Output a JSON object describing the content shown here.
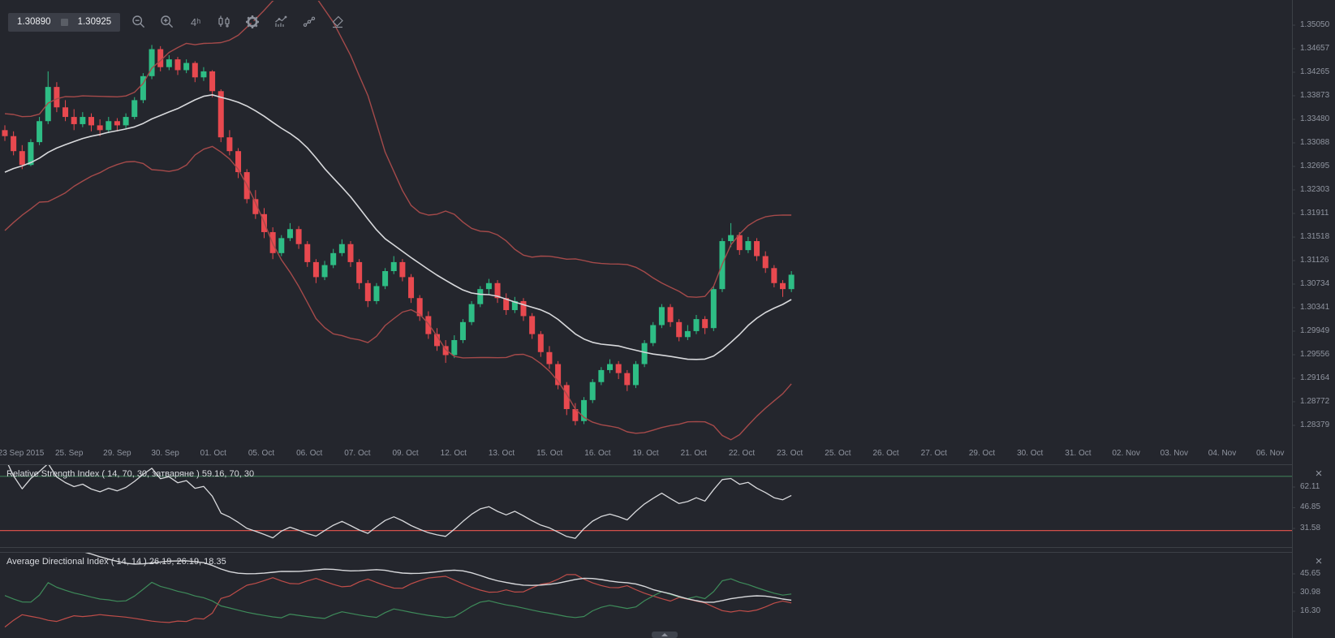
{
  "toolbar": {
    "bid": "1.30890",
    "ask": "1.30925",
    "timeframe_label": "4ʰ",
    "icon_names": [
      "zoom-out-icon",
      "zoom-in-icon",
      "timeframe-4h-icon",
      "candlestick-style-icon",
      "settings-gear-icon",
      "indicators-icon",
      "line-points-icon",
      "eraser-icon"
    ]
  },
  "panels": {
    "rsi": {
      "title": "Relative Strength Index ( 14, 70, 30, затваряне ) 59.16, 70, 30",
      "close_label": "×"
    },
    "adx": {
      "title": "Average Directional Index ( 14, 14 ) 26.19, 26.19, 18.35",
      "close_label": "×"
    }
  },
  "colors": {
    "background": "#24262d",
    "bullish": "#2ebd85",
    "bearish": "#e8494f",
    "bollinger_band": "#a54a4a",
    "moving_average": "#d8d9dc",
    "rsi_line": "#d8d9dc",
    "rsi_upper_level": "#3e7e57",
    "rsi_lower_level": "#d3504a",
    "adx_line": "#d8d9dc",
    "plus_di": "#3e8b5a",
    "minus_di": "#bf4d49",
    "axis_text": "#9095a0",
    "panel_border": "#3c4046"
  },
  "chart_data": {
    "type": "candlestick",
    "main": {
      "title": "EURUSD-style 4h candlestick pane with Bollinger Bands (20, 2)",
      "y_ticks": [
        "1.35050",
        "1.34657",
        "1.34265",
        "1.33873",
        "1.33480",
        "1.33088",
        "1.32695",
        "1.32303",
        "1.31911",
        "1.31518",
        "1.31126",
        "1.30734",
        "1.30341",
        "1.29949",
        "1.29556",
        "1.29164",
        "1.28772",
        "1.28379"
      ],
      "x_labels": [
        "23 Sep 2015",
        "25. Sep",
        "29. Sep",
        "30. Sep",
        "01. Oct",
        "05. Oct",
        "06. Oct",
        "07. Oct",
        "09. Oct",
        "12. Oct",
        "13. Oct",
        "15. Oct",
        "16. Oct",
        "19. Oct",
        "21. Oct",
        "22. Oct",
        "23. Oct",
        "25. Oct",
        "26. Oct",
        "27. Oct",
        "29. Oct",
        "30. Oct",
        "31. Oct",
        "02. Nov",
        "03. Nov",
        "04. Nov",
        "06. Nov"
      ],
      "bollinger": {
        "period": 20,
        "stddev": 2
      },
      "seed_closes": [
        1.309,
        1.31,
        1.311,
        1.312,
        1.3135,
        1.313,
        1.3145,
        1.315,
        1.316,
        1.3155,
        1.316,
        1.3175,
        1.3185,
        1.32,
        1.3195,
        1.321,
        1.3225,
        1.324,
        1.3235,
        1.325,
        1.326,
        1.3275,
        1.327,
        1.3285,
        1.3295,
        1.331,
        1.3305,
        1.3315,
        1.332,
        1.333
      ],
      "candles": [
        [
          1.333,
          1.3338,
          1.3312,
          1.332
        ],
        [
          1.332,
          1.3328,
          1.3288,
          1.3295
        ],
        [
          1.3295,
          1.3305,
          1.3265,
          1.3272
        ],
        [
          1.3272,
          1.3315,
          1.327,
          1.331
        ],
        [
          1.331,
          1.3352,
          1.3305,
          1.3345
        ],
        [
          1.3345,
          1.3428,
          1.334,
          1.3402
        ],
        [
          1.3402,
          1.341,
          1.336,
          1.3368
        ],
        [
          1.3368,
          1.338,
          1.3345,
          1.3352
        ],
        [
          1.3352,
          1.3365,
          1.333,
          1.334
        ],
        [
          1.334,
          1.336,
          1.3335,
          1.3352
        ],
        [
          1.3352,
          1.3358,
          1.3328,
          1.3338
        ],
        [
          1.3338,
          1.3348,
          1.332,
          1.333
        ],
        [
          1.333,
          1.3352,
          1.3325,
          1.3345
        ],
        [
          1.3345,
          1.335,
          1.3328,
          1.3338
        ],
        [
          1.3338,
          1.3358,
          1.3332,
          1.3352
        ],
        [
          1.3352,
          1.3385,
          1.3348,
          1.338
        ],
        [
          1.338,
          1.3425,
          1.3375,
          1.342
        ],
        [
          1.342,
          1.3472,
          1.3415,
          1.3465
        ],
        [
          1.3465,
          1.347,
          1.3428,
          1.3435
        ],
        [
          1.3435,
          1.3455,
          1.343,
          1.3448
        ],
        [
          1.3448,
          1.3452,
          1.3422,
          1.343
        ],
        [
          1.343,
          1.3448,
          1.3425,
          1.3442
        ],
        [
          1.3442,
          1.3445,
          1.341,
          1.3418
        ],
        [
          1.3418,
          1.3435,
          1.3412,
          1.3428
        ],
        [
          1.3428,
          1.343,
          1.3385,
          1.3395
        ],
        [
          1.3395,
          1.3398,
          1.331,
          1.3318
        ],
        [
          1.3318,
          1.333,
          1.3288,
          1.3295
        ],
        [
          1.3295,
          1.33,
          1.325,
          1.326
        ],
        [
          1.326,
          1.3265,
          1.3208,
          1.3215
        ],
        [
          1.3215,
          1.323,
          1.3182,
          1.319
        ],
        [
          1.319,
          1.32,
          1.315,
          1.316
        ],
        [
          1.316,
          1.3168,
          1.3115,
          1.3125
        ],
        [
          1.3125,
          1.3155,
          1.312,
          1.315
        ],
        [
          1.315,
          1.3175,
          1.3145,
          1.3165
        ],
        [
          1.3165,
          1.317,
          1.3132,
          1.314
        ],
        [
          1.314,
          1.3145,
          1.3102,
          1.311
        ],
        [
          1.311,
          1.3115,
          1.3075,
          1.3085
        ],
        [
          1.3085,
          1.3112,
          1.308,
          1.3105
        ],
        [
          1.3105,
          1.3132,
          1.31,
          1.3125
        ],
        [
          1.3125,
          1.3148,
          1.312,
          1.314
        ],
        [
          1.314,
          1.3145,
          1.3102,
          1.311
        ],
        [
          1.311,
          1.3115,
          1.3065,
          1.3075
        ],
        [
          1.3075,
          1.308,
          1.3035,
          1.3045
        ],
        [
          1.3045,
          1.3075,
          1.304,
          1.307
        ],
        [
          1.307,
          1.31,
          1.3065,
          1.3095
        ],
        [
          1.3095,
          1.312,
          1.309,
          1.311
        ],
        [
          1.311,
          1.3115,
          1.3078,
          1.3085
        ],
        [
          1.3085,
          1.309,
          1.3042,
          1.305
        ],
        [
          1.305,
          1.3055,
          1.3012,
          1.302
        ],
        [
          1.302,
          1.3028,
          1.2982,
          1.299
        ],
        [
          1.299,
          1.3,
          1.2962,
          1.297
        ],
        [
          1.297,
          1.298,
          1.2942,
          1.2955
        ],
        [
          1.2955,
          1.2988,
          1.295,
          1.298
        ],
        [
          1.298,
          1.3015,
          1.2975,
          1.301
        ],
        [
          1.301,
          1.3045,
          1.3005,
          1.304
        ],
        [
          1.304,
          1.307,
          1.3035,
          1.3065
        ],
        [
          1.3065,
          1.3082,
          1.3055,
          1.3075
        ],
        [
          1.3075,
          1.308,
          1.3042,
          1.305
        ],
        [
          1.305,
          1.3058,
          1.3022,
          1.303
        ],
        [
          1.303,
          1.3052,
          1.3025,
          1.3045
        ],
        [
          1.3045,
          1.305,
          1.3012,
          1.302
        ],
        [
          1.302,
          1.3025,
          1.2982,
          1.299
        ],
        [
          1.299,
          1.2995,
          1.2952,
          1.296
        ],
        [
          1.296,
          1.297,
          1.2932,
          1.294
        ],
        [
          1.294,
          1.2945,
          1.2898,
          1.2905
        ],
        [
          1.2905,
          1.291,
          1.2855,
          1.2865
        ],
        [
          1.2865,
          1.2875,
          1.2838,
          1.2845
        ],
        [
          1.2845,
          1.2885,
          1.284,
          1.288
        ],
        [
          1.288,
          1.2915,
          1.2875,
          1.291
        ],
        [
          1.291,
          1.2935,
          1.2905,
          1.293
        ],
        [
          1.293,
          1.2948,
          1.2925,
          1.294
        ],
        [
          1.294,
          1.2945,
          1.2915,
          1.2925
        ],
        [
          1.2925,
          1.293,
          1.2895,
          1.2905
        ],
        [
          1.2905,
          1.2945,
          1.29,
          1.294
        ],
        [
          1.294,
          1.298,
          1.2935,
          1.2975
        ],
        [
          1.2975,
          1.301,
          1.297,
          1.3005
        ],
        [
          1.3005,
          1.304,
          1.3,
          1.3035
        ],
        [
          1.3035,
          1.304,
          1.3002,
          1.301
        ],
        [
          1.301,
          1.3015,
          1.2978,
          1.2985
        ],
        [
          1.2985,
          1.3005,
          1.298,
          1.2995
        ],
        [
          1.2995,
          1.3022,
          1.299,
          1.3015
        ],
        [
          1.3015,
          1.302,
          1.299,
          1.3
        ],
        [
          1.3,
          1.307,
          1.2995,
          1.3065
        ],
        [
          1.3065,
          1.315,
          1.306,
          1.3145
        ],
        [
          1.3145,
          1.3175,
          1.3135,
          1.3155
        ],
        [
          1.3155,
          1.316,
          1.3122,
          1.313
        ],
        [
          1.313,
          1.3152,
          1.3125,
          1.3145
        ],
        [
          1.3145,
          1.315,
          1.3112,
          1.312
        ],
        [
          1.312,
          1.3128,
          1.3092,
          1.31
        ],
        [
          1.31,
          1.3105,
          1.3068,
          1.3075
        ],
        [
          1.3075,
          1.308,
          1.3052,
          1.3065
        ],
        [
          1.3065,
          1.3095,
          1.306,
          1.3089
        ]
      ]
    },
    "rsi": {
      "type": "line",
      "name": "Relative Strength Index",
      "params": "14, 70, 30, затваряне",
      "current_values": "59.16, 70, 30",
      "levels": [
        70,
        30
      ],
      "y_ticks": [
        "62.11",
        "46.85",
        "31.58"
      ]
    },
    "adx": {
      "type": "line",
      "name": "Average Directional Index",
      "params": "14, 14",
      "current_values": "26.19, 26.19, 18.35",
      "y_ticks": [
        "45.65",
        "30.98",
        "16.30"
      ]
    }
  }
}
